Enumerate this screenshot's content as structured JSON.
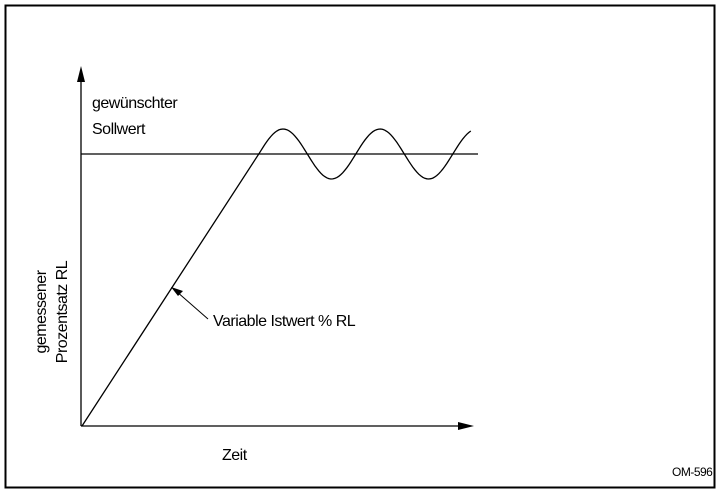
{
  "labels": {
    "setpoint_line1": "gewünschter",
    "setpoint_line2": "Sollwert",
    "y_axis_line1": "gemessener",
    "y_axis_line2": "Prozentsatz RL",
    "curve": "Variable Istwert % RL",
    "x_axis": "Zeit",
    "figure_id": "OM-596"
  }
}
